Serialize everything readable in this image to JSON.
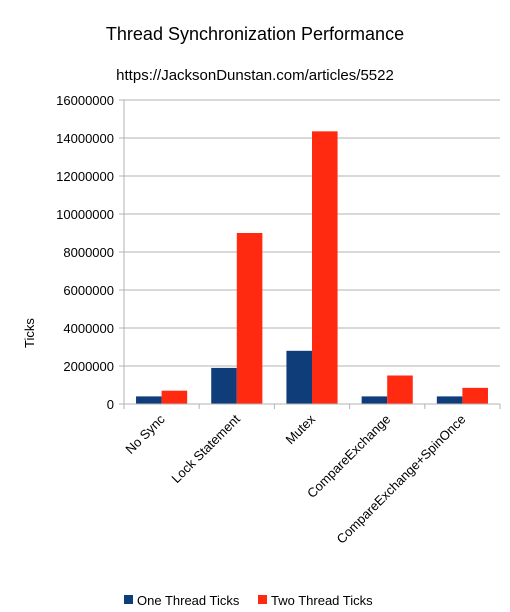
{
  "chart_data": {
    "type": "bar",
    "title": "Thread Synchronization Performance",
    "subtitle": "https://JacksonDunstan.com/articles/5522",
    "y_label": "Ticks",
    "categories": [
      "No Sync",
      "Lock Statement",
      "Mutex",
      "CompareExchange",
      "CompareExchange+SpinOnce"
    ],
    "series": [
      {
        "name": "One Thread Ticks",
        "color": "#0f3d7a",
        "values": [
          400000,
          1900000,
          2800000,
          400000,
          400000
        ]
      },
      {
        "name": "Two Thread Ticks",
        "color": "#ff2a0f",
        "values": [
          700000,
          9000000,
          14350000,
          1500000,
          850000
        ]
      }
    ],
    "ylim": [
      0,
      16000000
    ],
    "yticks": [
      0,
      2000000,
      4000000,
      6000000,
      8000000,
      10000000,
      12000000,
      14000000,
      16000000
    ],
    "grid": true
  }
}
